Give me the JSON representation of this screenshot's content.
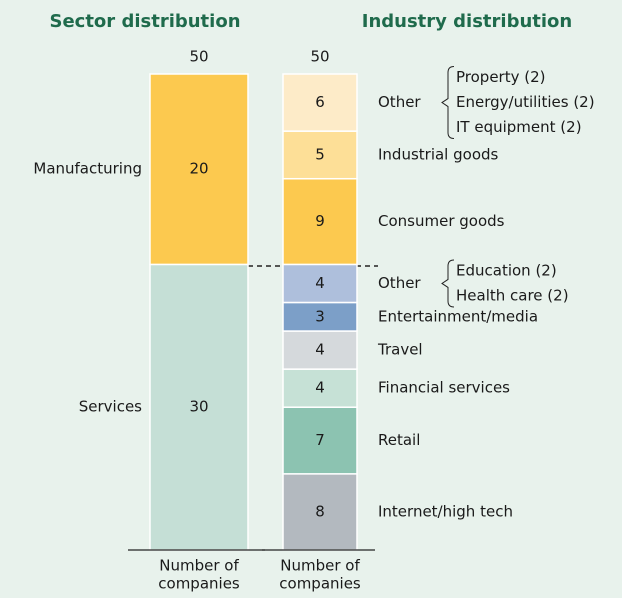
{
  "chart_data": [
    {
      "type": "stacked_bar",
      "title": "Sector distribution",
      "total": 50,
      "xlabel": [
        "Number of",
        "companies"
      ],
      "ylim": [
        0,
        50
      ],
      "segments": [
        {
          "name": "Services",
          "value": 30,
          "color": "#c5dfd6"
        },
        {
          "name": "Manufacturing",
          "value": 20,
          "color": "#fcc94f"
        }
      ]
    },
    {
      "type": "stacked_bar",
      "title": "Industry distribution",
      "total": 50,
      "xlabel": [
        "Number of",
        "companies"
      ],
      "ylim": [
        0,
        50
      ],
      "segments": [
        {
          "name": "Internet/high tech",
          "value": 8,
          "color": "#b3b9bf"
        },
        {
          "name": "Retail",
          "value": 7,
          "color": "#8cc3b1"
        },
        {
          "name": "Financial services",
          "value": 4,
          "color": "#c6e1d6"
        },
        {
          "name": "Travel",
          "value": 4,
          "color": "#d5d9dc"
        },
        {
          "name": "Entertainment/media",
          "value": 3,
          "color": "#7c9fc8"
        },
        {
          "name": "Other",
          "value": 4,
          "color": "#aebfdc",
          "items": [
            "Education (2)",
            "Health care (2)"
          ]
        },
        {
          "name": "Consumer goods",
          "value": 9,
          "color": "#fcc94f"
        },
        {
          "name": "Industrial goods",
          "value": 5,
          "color": "#fddf97"
        },
        {
          "name": "Other",
          "value": 6,
          "color": "#fdebc8",
          "items": [
            "Property (2)",
            "Energy/utilities (2)",
            "IT equipment (2)"
          ]
        }
      ]
    }
  ]
}
